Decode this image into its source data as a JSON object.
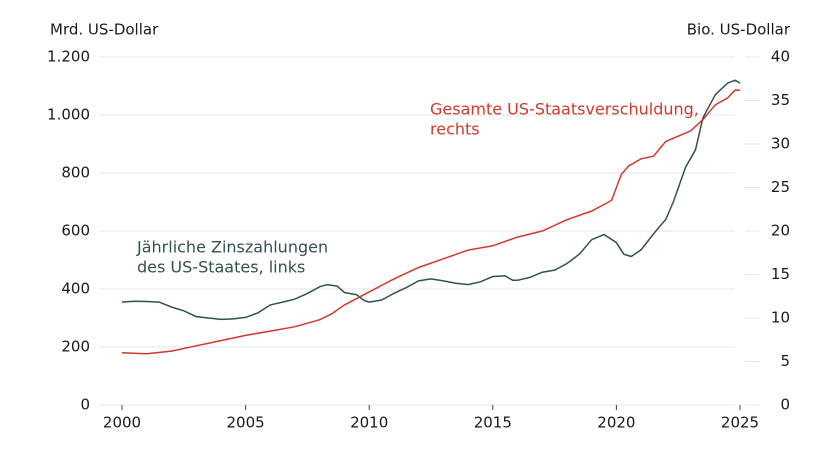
{
  "chart_data": {
    "type": "line",
    "y_axis_label": "Mrd. US-Dollar",
    "y2_axis_label": "Bio. US-Dollar",
    "xlim": [
      2000,
      2025
    ],
    "xticks": [
      2000,
      2005,
      2010,
      2015,
      2020,
      2025
    ],
    "ylim": [
      0,
      1200
    ],
    "yticks": [
      0,
      200,
      400,
      600,
      800,
      {
        "value": 1000,
        "label": "1.000"
      },
      {
        "value": 1200,
        "label": "1.200"
      }
    ],
    "y2lim": [
      0,
      40
    ],
    "y2ticks": [
      0,
      5,
      10,
      15,
      20,
      25,
      30,
      35,
      40
    ],
    "grid": true,
    "series": [
      {
        "name": "Jährliche Zinszahlungen des US-Staates, links",
        "color": "#34504f",
        "axis": "y",
        "x": [
          2000,
          2000.5,
          2001,
          2001.5,
          2002,
          2002.5,
          2003,
          2003.5,
          2004,
          2004.5,
          2005,
          2005.5,
          2006,
          2006.5,
          2007,
          2007.5,
          2008,
          2008.3,
          2008.7,
          2009,
          2009.5,
          2009.8,
          2010,
          2010.5,
          2011,
          2011.5,
          2012,
          2012.5,
          2013,
          2013.5,
          2014,
          2014.5,
          2015,
          2015.5,
          2015.8,
          2016,
          2016.5,
          2017,
          2017.5,
          2018,
          2018.5,
          2019,
          2019.5,
          2020,
          2020.3,
          2020.6,
          2021,
          2021.5,
          2022,
          2022.3,
          2022.8,
          2023.2,
          2023.5,
          2024,
          2024.5,
          2024.8,
          2025
        ],
        "values": [
          355,
          358,
          357,
          355,
          338,
          325,
          305,
          300,
          295,
          297,
          302,
          318,
          345,
          355,
          365,
          385,
          408,
          415,
          410,
          388,
          380,
          360,
          355,
          362,
          385,
          405,
          428,
          435,
          428,
          420,
          415,
          425,
          443,
          445,
          430,
          430,
          440,
          458,
          465,
          488,
          520,
          570,
          588,
          560,
          520,
          512,
          535,
          590,
          640,
          700,
          820,
          880,
          990,
          1070,
          1110,
          1120,
          1110
        ]
      },
      {
        "name": "Gesamte US-Staatsverschuldung, rechts",
        "color": "#d0392b",
        "axis": "y2",
        "x": [
          2000,
          2001,
          2002,
          2003,
          2004,
          2005,
          2006,
          2007,
          2008,
          2008.5,
          2009,
          2010,
          2011,
          2012,
          2013,
          2014,
          2015,
          2016,
          2017,
          2018,
          2019,
          2019.8,
          2020.2,
          2020.5,
          2021,
          2021.5,
          2022,
          2022.5,
          2023,
          2023.5,
          2024,
          2024.5,
          2024.8,
          2025
        ],
        "values": [
          6.0,
          5.9,
          6.2,
          6.8,
          7.4,
          8.0,
          8.5,
          9.0,
          9.8,
          10.5,
          11.5,
          13.0,
          14.5,
          15.8,
          16.8,
          17.8,
          18.3,
          19.3,
          20.0,
          21.3,
          22.3,
          23.5,
          26.5,
          27.5,
          28.3,
          28.6,
          30.3,
          30.9,
          31.5,
          32.8,
          34.5,
          35.3,
          36.2,
          36.2
        ]
      }
    ],
    "annotations": [
      {
        "lines": [
          "Gesamte US-Staatsverschuldung,",
          "rechts"
        ],
        "color": "#d0392b"
      },
      {
        "lines": [
          "Jährliche Zinszahlungen",
          "des US-Staates, links"
        ],
        "color": "#34504f"
      }
    ]
  }
}
